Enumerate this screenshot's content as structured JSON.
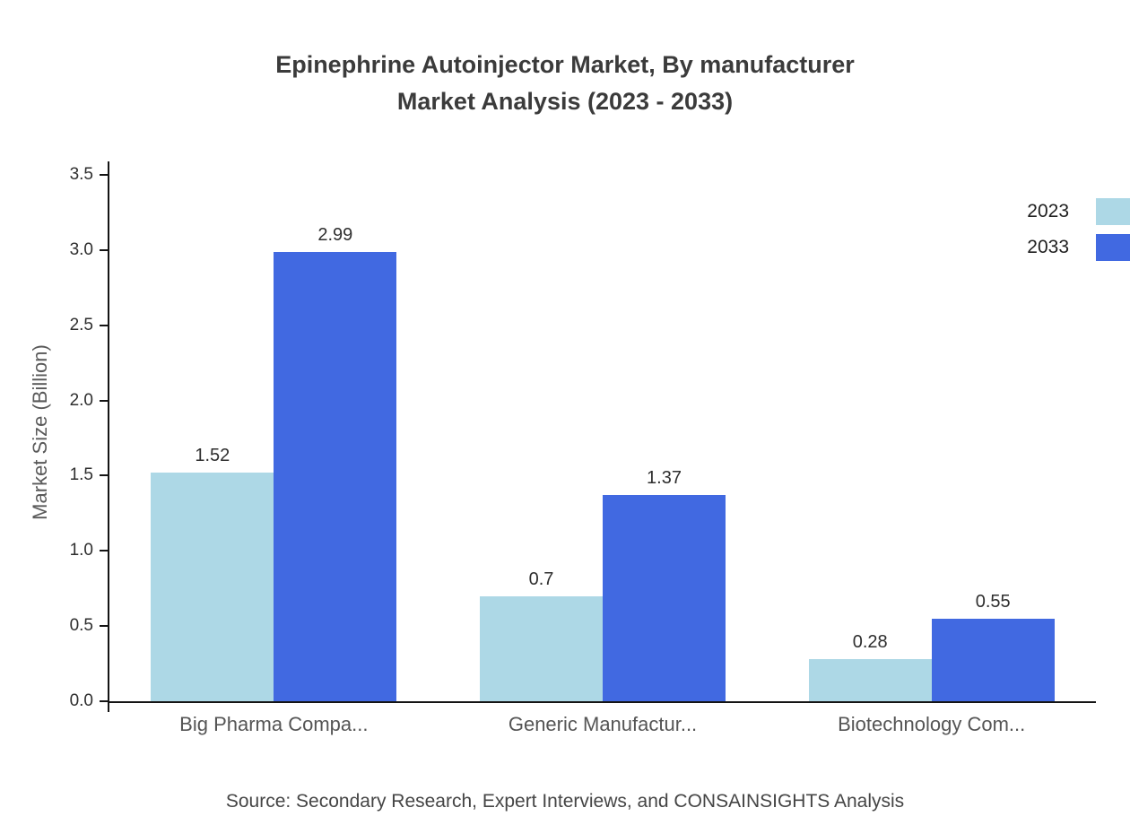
{
  "title": {
    "line1": "Epinephrine Autoinjector Market, By manufacturer",
    "line2": "Market Analysis (2023 - 2033)"
  },
  "ylabel": "Market Size (Billion)",
  "source": "Source: Secondary Research, Expert Interviews, and CONSAINSIGHTS Analysis",
  "colors": {
    "series_2023": "#ADD8E6",
    "series_2033": "#4169E1",
    "axis": "#141414",
    "title_text": "#3b3b3b"
  },
  "chart_data": {
    "type": "bar",
    "title": "Epinephrine Autoinjector Market, By manufacturer Market Analysis (2023 - 2033)",
    "categories": [
      "Big Pharma Compa...",
      "Generic Manufactur...",
      "Biotechnology Com..."
    ],
    "series": [
      {
        "name": "2023",
        "color": "#ADD8E6",
        "values": [
          1.52,
          0.7,
          0.28
        ]
      },
      {
        "name": "2033",
        "color": "#4169E1",
        "values": [
          2.99,
          1.37,
          0.55
        ]
      }
    ],
    "xlabel": "",
    "ylabel": "Market Size (Billion)",
    "ylim": [
      0,
      3.5
    ],
    "yticks": [
      0.0,
      0.5,
      1.0,
      1.5,
      2.0,
      2.5,
      3.0,
      3.5
    ],
    "grid": false,
    "legend_position": "top-right",
    "value_labels": true
  }
}
